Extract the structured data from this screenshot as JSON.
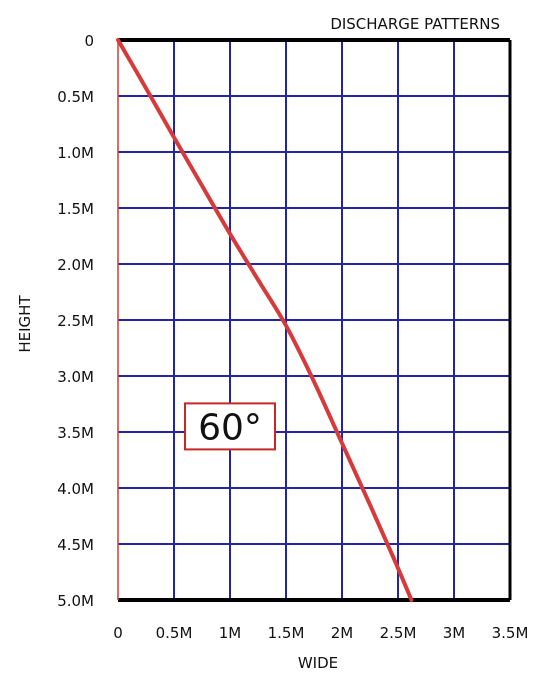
{
  "chart_data": {
    "type": "line",
    "title": "DISCHARGE PATTERNS",
    "xlabel": "WIDE",
    "ylabel": "HEIGHT",
    "xlim": [
      0,
      3.5
    ],
    "ylim": [
      0,
      5.0
    ],
    "y_inverted": true,
    "grid": true,
    "x_tick_labels": [
      "0",
      "0.5M",
      "1M",
      "1.5M",
      "2M",
      "2.5M",
      "3M",
      "3.5M"
    ],
    "y_tick_labels": [
      "0",
      "0.5M",
      "1.0M",
      "1.5M",
      "2.0M",
      "2.5M",
      "3.0M",
      "3.5M",
      "4.0M",
      "4.5M",
      "5.0M"
    ],
    "series": [
      {
        "color": "#d63a3a",
        "points": [
          [
            0,
            0
          ],
          [
            0.25,
            0.43
          ],
          [
            0.5,
            0.87
          ],
          [
            0.75,
            1.3
          ],
          [
            1.0,
            1.73
          ],
          [
            1.25,
            2.14
          ],
          [
            1.5,
            2.55
          ],
          [
            1.75,
            3.05
          ],
          [
            2.0,
            3.6
          ],
          [
            2.25,
            4.15
          ],
          [
            2.45,
            4.6
          ],
          [
            2.62,
            5.0
          ]
        ]
      }
    ],
    "annotation": {
      "text": "60°",
      "x": 1.0,
      "y": 3.45
    },
    "colors": {
      "grid": "#2424a8",
      "frame": "#000000",
      "curve": "#d63a3a",
      "annotation_border": "#c62828"
    }
  }
}
